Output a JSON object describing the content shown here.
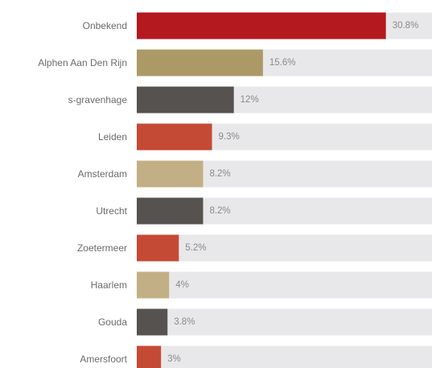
{
  "chart_data": {
    "type": "bar",
    "orientation": "horizontal",
    "categories": [
      "Onbekend",
      "Alphen Aan Den Rijn",
      "s-gravenhage",
      "Leiden",
      "Amsterdam",
      "Utrecht",
      "Zoetermeer",
      "Haarlem",
      "Gouda",
      "Amersfoort"
    ],
    "values": [
      30.8,
      15.6,
      12,
      9.3,
      8.2,
      8.2,
      5.2,
      4,
      3.8,
      3
    ],
    "value_labels": [
      "30.8%",
      "15.6%",
      "12%",
      "9.3%",
      "8.2%",
      "8.2%",
      "5.2%",
      "4%",
      "3.8%",
      "3%"
    ],
    "xlim": [
      0,
      36.5
    ],
    "bar_colors": [
      "#b3191e",
      "#ab9a66",
      "#555250",
      "#c54a35",
      "#c3af85",
      "#555250",
      "#c54a35",
      "#c3af85",
      "#555250",
      "#c54a35"
    ],
    "track_color": "#e8e8ea",
    "grid": false,
    "title": "",
    "xlabel": "",
    "ylabel": ""
  }
}
